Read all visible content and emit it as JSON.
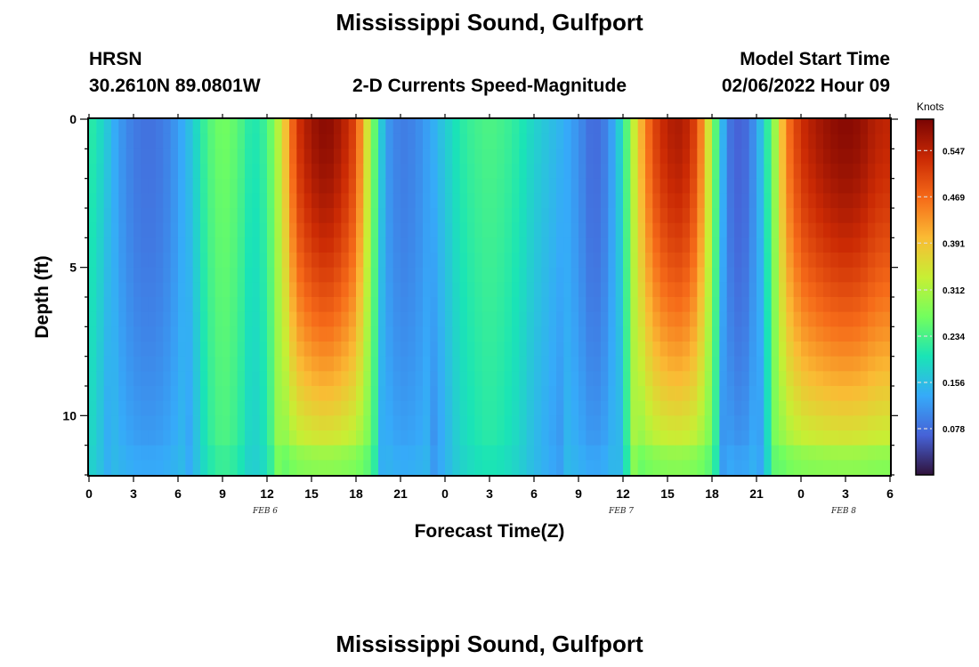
{
  "page": {
    "title": "Mississippi Sound, Gulfport",
    "title_repeat": "Mississippi Sound, Gulfport",
    "station_code": "HRSN",
    "station_coords": "30.2610N  89.0801W",
    "subtitle": "2-D Currents Speed-Magnitude",
    "model_start_label": "Model Start Time",
    "model_start_value": "02/06/2022 Hour 09"
  },
  "chart_data": {
    "type": "heatmap",
    "title": "2-D Currents Speed-Magnitude",
    "xlabel": "Forecast Time(Z)",
    "ylabel": "Depth (ft)",
    "x_tick_labels": [
      "0",
      "3",
      "6",
      "9",
      "12",
      "15",
      "18",
      "21",
      "0",
      "3",
      "6",
      "9",
      "12",
      "15",
      "18",
      "21",
      "0",
      "3",
      "6"
    ],
    "x_range_hours": [
      0,
      54
    ],
    "date_labels": [
      {
        "text": "FEB 6",
        "hour": 12
      },
      {
        "text": "FEB 7",
        "hour": 36
      },
      {
        "text": "FEB 8",
        "hour": 51
      }
    ],
    "y_ticks": [
      0,
      5,
      10
    ],
    "y_range_ft": [
      0,
      12
    ],
    "y_inverted": true,
    "colorbar": {
      "unit": "Knots",
      "min": 0.0,
      "max": 0.6,
      "labels": [
        "0.547",
        "0.469",
        "0.391",
        "0.312",
        "0.234",
        "0.156",
        "0.078"
      ],
      "label_values": [
        0.547,
        0.469,
        0.391,
        0.312,
        0.234,
        0.156,
        0.078
      ]
    },
    "colormap": [
      "#30123b",
      "#4662d7",
      "#36aaf9",
      "#1ae4b6",
      "#72fe5e",
      "#c7ef34",
      "#fabb34",
      "#f66b19",
      "#cb2a04",
      "#7a0403"
    ],
    "speed_by_hour_surface": [
      [
        0,
        0.22
      ],
      [
        1,
        0.18
      ],
      [
        2,
        0.12
      ],
      [
        3,
        0.09
      ],
      [
        4,
        0.08
      ],
      [
        5,
        0.09
      ],
      [
        6,
        0.12
      ],
      [
        7,
        0.17
      ],
      [
        8,
        0.24
      ],
      [
        9,
        0.27
      ],
      [
        10,
        0.25
      ],
      [
        11,
        0.2
      ],
      [
        12,
        0.23
      ],
      [
        13,
        0.35
      ],
      [
        14,
        0.52
      ],
      [
        15,
        0.57
      ],
      [
        16,
        0.59
      ],
      [
        17,
        0.56
      ],
      [
        18,
        0.5
      ],
      [
        19,
        0.3
      ],
      [
        20,
        0.12
      ],
      [
        21,
        0.09
      ],
      [
        22,
        0.1
      ],
      [
        23,
        0.13
      ],
      [
        24,
        0.17
      ],
      [
        25,
        0.21
      ],
      [
        26,
        0.23
      ],
      [
        27,
        0.24
      ],
      [
        28,
        0.23
      ],
      [
        29,
        0.21
      ],
      [
        30,
        0.18
      ],
      [
        31,
        0.16
      ],
      [
        32,
        0.14
      ],
      [
        33,
        0.11
      ],
      [
        34,
        0.07
      ],
      [
        35,
        0.1
      ],
      [
        36,
        0.2
      ],
      [
        37,
        0.38
      ],
      [
        38,
        0.5
      ],
      [
        39,
        0.55
      ],
      [
        40,
        0.56
      ],
      [
        41,
        0.5
      ],
      [
        42,
        0.3
      ],
      [
        43,
        0.09
      ],
      [
        44,
        0.06
      ],
      [
        45,
        0.12
      ],
      [
        46,
        0.25
      ],
      [
        47,
        0.45
      ],
      [
        48,
        0.53
      ],
      [
        49,
        0.56
      ],
      [
        50,
        0.58
      ],
      [
        51,
        0.59
      ],
      [
        52,
        0.58
      ],
      [
        53,
        0.55
      ],
      [
        54,
        0.54
      ]
    ]
  }
}
